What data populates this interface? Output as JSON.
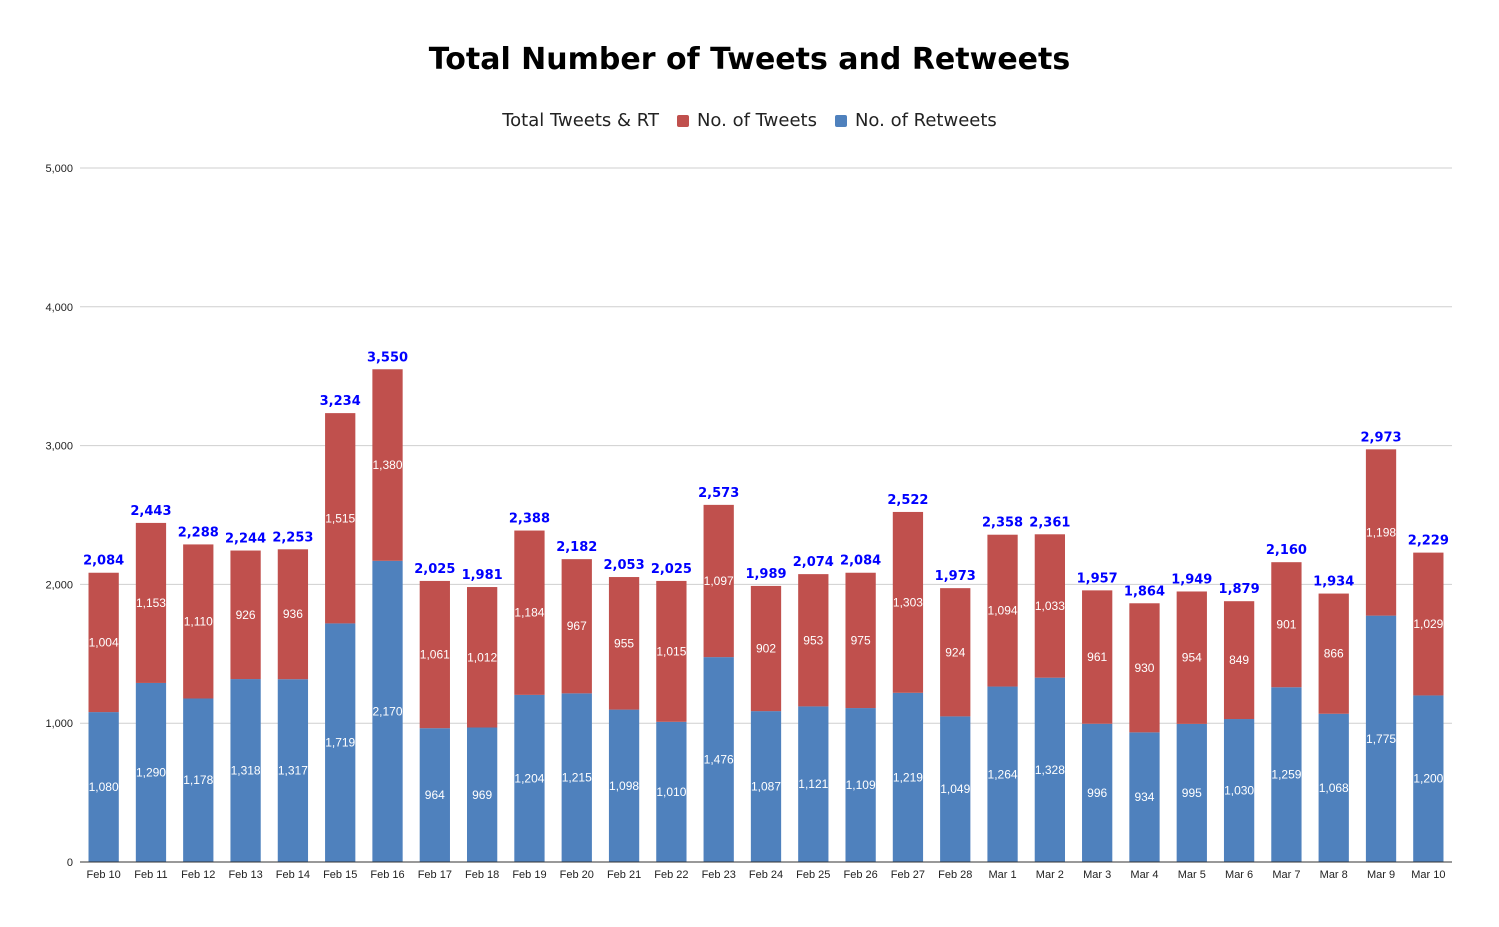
{
  "chart_data": {
    "type": "bar",
    "stacked": true,
    "title": "Total Number of Tweets and Retweets",
    "legend": {
      "placement": "top",
      "entries": [
        "Total Tweets & RT",
        "No. of Tweets",
        "No. of Retweets"
      ]
    },
    "categories": [
      "Feb 10",
      "Feb 11",
      "Feb 12",
      "Feb 13",
      "Feb 14",
      "Feb 15",
      "Feb 16",
      "Feb 17",
      "Feb 18",
      "Feb 19",
      "Feb 20",
      "Feb 21",
      "Feb 22",
      "Feb 23",
      "Feb 24",
      "Feb 25",
      "Feb 26",
      "Feb 27",
      "Feb 28",
      "Mar 1",
      "Mar 2",
      "Mar 3",
      "Mar 4",
      "Mar 5",
      "Mar 6",
      "Mar 7",
      "Mar 8",
      "Mar 9",
      "Mar 10"
    ],
    "series": [
      {
        "name": "No. of Retweets",
        "color": "#4f81bd",
        "values": [
          1080,
          1290,
          1178,
          1318,
          1317,
          1719,
          2170,
          964,
          969,
          1204,
          1215,
          1098,
          1010,
          1476,
          1087,
          1121,
          1109,
          1219,
          1049,
          1264,
          1328,
          996,
          934,
          995,
          1030,
          1259,
          1068,
          1775,
          1200
        ]
      },
      {
        "name": "No. of Tweets",
        "color": "#c0504d",
        "values": [
          1004,
          1153,
          1110,
          926,
          936,
          1515,
          1380,
          1061,
          1012,
          1184,
          967,
          955,
          1015,
          1097,
          902,
          953,
          975,
          1303,
          924,
          1094,
          1033,
          961,
          930,
          954,
          849,
          901,
          866,
          1198,
          1029
        ]
      }
    ],
    "totals": {
      "name": "Total Tweets & RT",
      "color": "#0000ff",
      "values": [
        2084,
        2443,
        2288,
        2244,
        2253,
        3234,
        3550,
        2025,
        1981,
        2388,
        2182,
        2053,
        2025,
        2573,
        1989,
        2074,
        2084,
        2522,
        1973,
        2358,
        2361,
        1957,
        1864,
        1949,
        1879,
        2160,
        1934,
        2973,
        2229
      ]
    },
    "yticks": [
      "0",
      "1,000",
      "2,000",
      "3,000",
      "4,000",
      "5,000"
    ],
    "ylim": [
      0,
      5000
    ],
    "grid": true
  }
}
